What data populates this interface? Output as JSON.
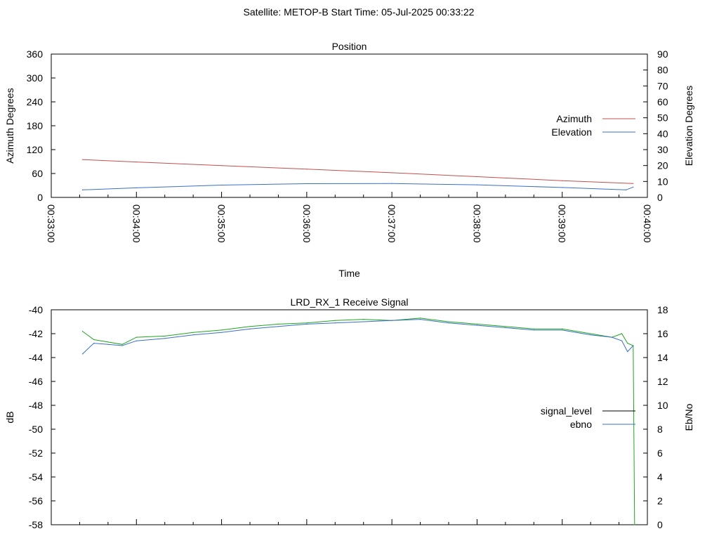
{
  "header": {
    "title": "Satellite: METOP-B    Start Time: 05-Jul-2025 00:33:22"
  },
  "chart_data": [
    {
      "type": "line",
      "title": "Position",
      "xlabel": "Time",
      "ylabel": "Azimuth Degrees",
      "y2label": "Elevation Degrees",
      "xlim": [
        "00:33:00",
        "00:40:00"
      ],
      "xticks": [
        "00:33:00",
        "00:34:00",
        "00:35:00",
        "00:36:00",
        "00:37:00",
        "00:38:00",
        "00:39:00",
        "00:40:00"
      ],
      "ylim": [
        0,
        360
      ],
      "yticks": [
        0,
        60,
        120,
        180,
        240,
        300,
        360
      ],
      "y2lim": [
        0,
        90
      ],
      "y2ticks": [
        0,
        10,
        20,
        30,
        40,
        50,
        60,
        70,
        80,
        90
      ],
      "legend_position": "right",
      "series": [
        {
          "name": "Azimuth",
          "axis": "left",
          "color": "#c0504d",
          "x": [
            "00:33:22",
            "00:34:00",
            "00:35:00",
            "00:36:00",
            "00:37:00",
            "00:38:00",
            "00:39:00",
            "00:39:50"
          ],
          "values": [
            95,
            89,
            80,
            71,
            62,
            52,
            42,
            35
          ]
        },
        {
          "name": "Elevation",
          "axis": "right",
          "color": "#3a6fc4",
          "x": [
            "00:33:22",
            "00:34:00",
            "00:35:00",
            "00:36:00",
            "00:37:00",
            "00:38:00",
            "00:39:00",
            "00:39:45",
            "00:39:50"
          ],
          "values": [
            4.7,
            6.0,
            7.7,
            8.6,
            8.7,
            7.9,
            6.2,
            4.7,
            6.5
          ]
        }
      ]
    },
    {
      "type": "line",
      "title": "LRD_RX_1 Receive Signal",
      "ylabel": "dB",
      "y2label": "Eb/No",
      "xlim": [
        "00:33:00",
        "00:40:00"
      ],
      "ylim": [
        -58,
        -40
      ],
      "yticks": [
        -58,
        -56,
        -54,
        -52,
        -50,
        -48,
        -46,
        -44,
        -42,
        -40
      ],
      "y2lim": [
        0,
        18
      ],
      "y2ticks": [
        0,
        2,
        4,
        6,
        8,
        10,
        12,
        14,
        16,
        18
      ],
      "legend_position": "right",
      "legend": [
        {
          "name": "signal_level",
          "color": "#000000"
        },
        {
          "name": "ebno",
          "color": "#3a6fc4"
        }
      ],
      "series": [
        {
          "name": "signal_level",
          "axis": "left",
          "color": "#1fa51f",
          "x": [
            "00:33:22",
            "00:33:30",
            "00:33:40",
            "00:33:50",
            "00:34:00",
            "00:34:20",
            "00:34:40",
            "00:35:00",
            "00:35:20",
            "00:35:40",
            "00:36:00",
            "00:36:20",
            "00:36:40",
            "00:37:00",
            "00:37:20",
            "00:37:40",
            "00:38:00",
            "00:38:20",
            "00:38:40",
            "00:39:00",
            "00:39:20",
            "00:39:35",
            "00:39:42",
            "00:39:46",
            "00:39:50",
            "00:39:51"
          ],
          "values": [
            -41.8,
            -42.5,
            -42.7,
            -42.9,
            -42.3,
            -42.2,
            -41.9,
            -41.7,
            -41.4,
            -41.2,
            -41.1,
            -40.9,
            -40.8,
            -40.9,
            -40.7,
            -41.0,
            -41.2,
            -41.4,
            -41.6,
            -41.6,
            -42.0,
            -42.3,
            -42.0,
            -42.8,
            -43.0,
            -58.0
          ]
        },
        {
          "name": "ebno",
          "axis": "right",
          "color": "#3a6fc4",
          "x": [
            "00:33:22",
            "00:33:30",
            "00:33:40",
            "00:33:50",
            "00:34:00",
            "00:34:20",
            "00:34:40",
            "00:35:00",
            "00:35:20",
            "00:35:40",
            "00:36:00",
            "00:36:20",
            "00:36:40",
            "00:37:00",
            "00:37:20",
            "00:37:40",
            "00:38:00",
            "00:38:20",
            "00:38:40",
            "00:39:00",
            "00:39:20",
            "00:39:35",
            "00:39:42",
            "00:39:46",
            "00:39:50"
          ],
          "values": [
            14.3,
            15.2,
            15.1,
            15.0,
            15.4,
            15.6,
            15.9,
            16.1,
            16.4,
            16.6,
            16.8,
            16.9,
            17.0,
            17.1,
            17.2,
            16.9,
            16.7,
            16.5,
            16.3,
            16.3,
            15.9,
            15.7,
            15.4,
            14.5,
            15.0
          ]
        }
      ]
    }
  ]
}
